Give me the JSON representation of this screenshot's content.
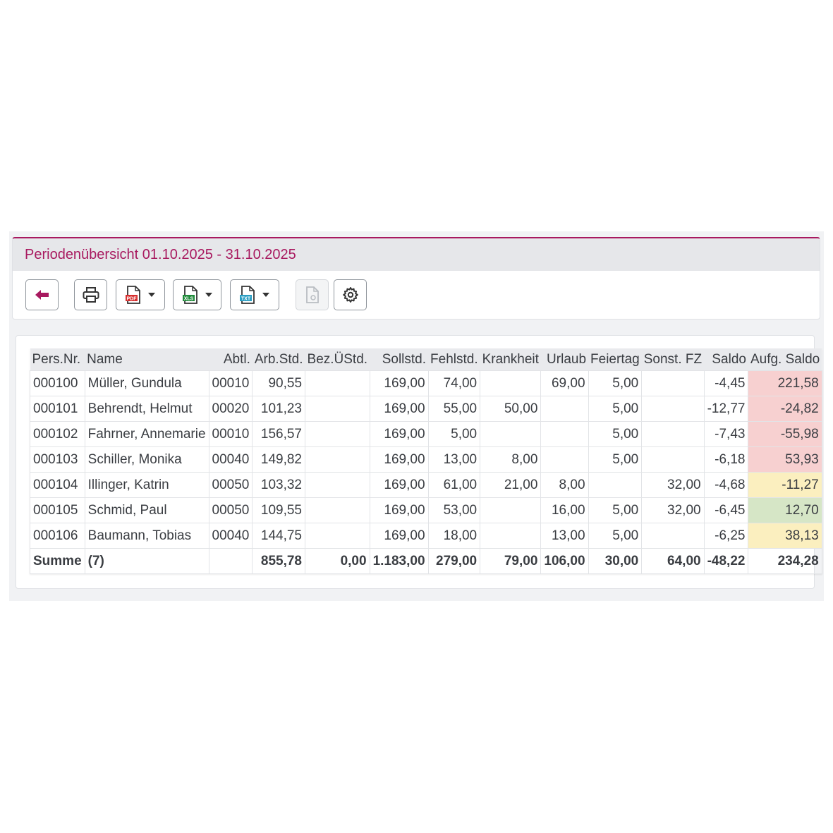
{
  "header": {
    "title": "Periodenübersicht 01.10.2025 - 31.10.2025"
  },
  "toolbar": {
    "buttons": [
      {
        "icon": "back-arrow-icon"
      },
      {
        "icon": "print-icon"
      },
      {
        "icon": "pdf-export-icon",
        "badge": "PDF"
      },
      {
        "icon": "xls-export-icon",
        "badge": "XLS"
      },
      {
        "icon": "txt-export-icon",
        "badge": "TXT"
      },
      {
        "icon": "document-icon",
        "disabled": true
      },
      {
        "icon": "gear-icon"
      }
    ]
  },
  "colors": {
    "accent": "#a8195f",
    "negative": "#f7d0d0",
    "warning": "#fbefbf",
    "positive": "#d6e6c6"
  },
  "table": {
    "columns": [
      "Pers.Nr.",
      "Name",
      "Abtl.",
      "Arb.Std.",
      "Bez.ÜStd.",
      "Sollstd.",
      "Fehlstd.",
      "Krankheit",
      "Urlaub",
      "Feiertag",
      "Sonst. FZ",
      "Saldo",
      "Aufg. Saldo"
    ],
    "rows": [
      {
        "persnr": "000100",
        "name": "Müller, Gundula",
        "abtl": "00010",
        "arb": "90,55",
        "bez": "",
        "soll": "169,00",
        "fehl": "74,00",
        "krank": "",
        "urlaub": "69,00",
        "feiertag": "5,00",
        "sonst": "",
        "saldo": "-4,45",
        "aufg": "221,58",
        "status": "red"
      },
      {
        "persnr": "000101",
        "name": "Behrendt, Helmut",
        "abtl": "00020",
        "arb": "101,23",
        "bez": "",
        "soll": "169,00",
        "fehl": "55,00",
        "krank": "50,00",
        "urlaub": "",
        "feiertag": "5,00",
        "sonst": "",
        "saldo": "-12,77",
        "aufg": "-24,82",
        "status": "red"
      },
      {
        "persnr": "000102",
        "name": "Fahrner, Annemarie",
        "abtl": "00010",
        "arb": "156,57",
        "bez": "",
        "soll": "169,00",
        "fehl": "5,00",
        "krank": "",
        "urlaub": "",
        "feiertag": "5,00",
        "sonst": "",
        "saldo": "-7,43",
        "aufg": "-55,98",
        "status": "red"
      },
      {
        "persnr": "000103",
        "name": "Schiller, Monika",
        "abtl": "00040",
        "arb": "149,82",
        "bez": "",
        "soll": "169,00",
        "fehl": "13,00",
        "krank": "8,00",
        "urlaub": "",
        "feiertag": "5,00",
        "sonst": "",
        "saldo": "-6,18",
        "aufg": "53,93",
        "status": "red"
      },
      {
        "persnr": "000104",
        "name": "Illinger, Katrin",
        "abtl": "00050",
        "arb": "103,32",
        "bez": "",
        "soll": "169,00",
        "fehl": "61,00",
        "krank": "21,00",
        "urlaub": "8,00",
        "feiertag": "",
        "sonst": "32,00",
        "saldo": "-4,68",
        "aufg": "-11,27",
        "status": "yellow"
      },
      {
        "persnr": "000105",
        "name": "Schmid, Paul",
        "abtl": "00050",
        "arb": "109,55",
        "bez": "",
        "soll": "169,00",
        "fehl": "53,00",
        "krank": "",
        "urlaub": "16,00",
        "feiertag": "5,00",
        "sonst": "32,00",
        "saldo": "-6,45",
        "aufg": "12,70",
        "status": "green"
      },
      {
        "persnr": "000106",
        "name": "Baumann, Tobias",
        "abtl": "00040",
        "arb": "144,75",
        "bez": "",
        "soll": "169,00",
        "fehl": "18,00",
        "krank": "",
        "urlaub": "13,00",
        "feiertag": "5,00",
        "sonst": "",
        "saldo": "-6,25",
        "aufg": "38,13",
        "status": "yellow"
      }
    ],
    "summary": {
      "label": "Summe",
      "count": "(7)",
      "abtl": "",
      "arb": "855,78",
      "bez": "0,00",
      "soll": "1.183,00",
      "fehl": "279,00",
      "krank": "79,00",
      "urlaub": "106,00",
      "feiertag": "30,00",
      "sonst": "64,00",
      "saldo": "-48,22",
      "aufg": "234,28"
    }
  }
}
